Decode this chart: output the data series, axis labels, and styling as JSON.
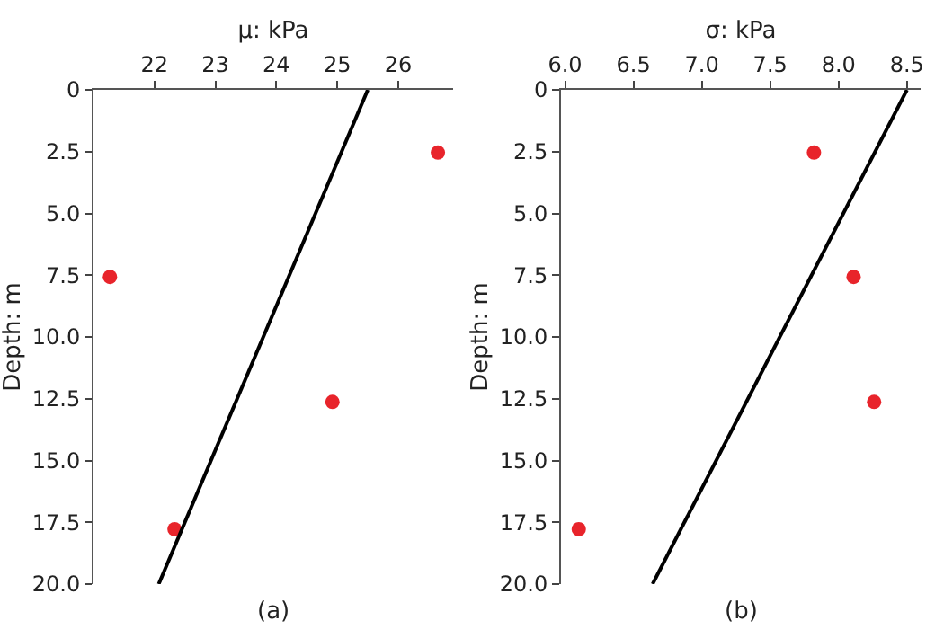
{
  "chart_data": [
    {
      "type": "scatter",
      "xlabel": "μ: kPa",
      "ylabel": "Depth: m",
      "annotations": [
        "(a)"
      ],
      "xlim": [
        21.0,
        26.9
      ],
      "xticks": [
        22,
        23,
        24,
        25,
        26
      ],
      "ylim": [
        20,
        0
      ],
      "yticks": [
        {
          "value": 0,
          "label": "0"
        },
        {
          "value": 2.5,
          "label": "2.5"
        },
        {
          "value": 5,
          "label": "5.0"
        },
        {
          "value": 7.5,
          "label": "7.5"
        },
        {
          "value": 10,
          "label": "10.0"
        },
        {
          "value": 12.5,
          "label": "12.5"
        },
        {
          "value": 15,
          "label": "15.0"
        },
        {
          "value": 17.5,
          "label": "17.5"
        },
        {
          "value": 20,
          "label": "20.0"
        }
      ],
      "grid": false,
      "series": [
        {
          "marker": "circle",
          "color": "#e8242b",
          "x": [
            26.65,
            21.27,
            24.92,
            22.33
          ],
          "values": [
            2.54,
            7.57,
            12.63,
            17.78
          ]
        },
        {
          "type": "line",
          "color": "#000000",
          "x": [
            25.5,
            22.07
          ],
          "values": [
            0,
            20
          ],
          "line_style": "solid"
        }
      ]
    },
    {
      "type": "scatter",
      "xlabel": "σ: kPa",
      "ylabel": "Depth: m",
      "annotations": [
        "(b)"
      ],
      "xlim": [
        5.97,
        8.6
      ],
      "xticks": [
        {
          "value": 6,
          "label": "6.0"
        },
        {
          "value": 6.5,
          "label": "6.5"
        },
        {
          "value": 7,
          "label": "7.0"
        },
        {
          "value": 7.5,
          "label": "7.5"
        },
        {
          "value": 8,
          "label": "8.0"
        },
        {
          "value": 8.5,
          "label": "8.5"
        }
      ],
      "ylim": [
        20,
        0
      ],
      "yticks": [
        {
          "value": 0,
          "label": "0"
        },
        {
          "value": 2.5,
          "label": "2.5"
        },
        {
          "value": 5,
          "label": "5.0"
        },
        {
          "value": 7.5,
          "label": "7.5"
        },
        {
          "value": 10,
          "label": "10.0"
        },
        {
          "value": 12.5,
          "label": "12.5"
        },
        {
          "value": 15,
          "label": "15.0"
        },
        {
          "value": 17.5,
          "label": "17.5"
        },
        {
          "value": 20,
          "label": "20.0"
        }
      ],
      "grid": false,
      "series": [
        {
          "marker": "circle",
          "color": "#e8242b",
          "x": [
            7.82,
            8.11,
            8.26,
            6.1
          ],
          "values": [
            2.54,
            7.57,
            12.63,
            17.78
          ]
        },
        {
          "type": "line",
          "color": "#000000",
          "x": [
            8.5,
            6.64
          ],
          "values": [
            0,
            20
          ],
          "line_style": "solid"
        }
      ]
    }
  ]
}
